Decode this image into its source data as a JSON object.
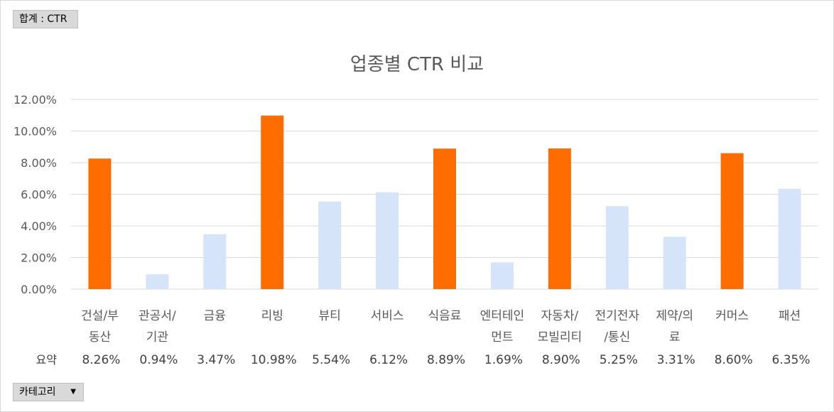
{
  "pivot": {
    "value_field_label": "합계 : CTR",
    "category_field_label": "카테고리",
    "category_dropdown_icon": "triangle-down-icon",
    "summary_row_label": "요약"
  },
  "colors": {
    "highlight": "#FF6D00",
    "normal": "#D6E4FA",
    "grid": "#D9D9D9"
  },
  "chart_data": {
    "type": "bar",
    "title": "업종별 CTR 비교",
    "xlabel": "",
    "ylabel": "",
    "ylim": [
      0,
      0.12
    ],
    "yticks": [
      "0.00%",
      "2.00%",
      "4.00%",
      "6.00%",
      "8.00%",
      "10.00%",
      "12.00%"
    ],
    "grid": true,
    "legend": "none",
    "categories": [
      [
        "건설/부",
        "동산"
      ],
      [
        "관공서/",
        "기관"
      ],
      [
        "금융"
      ],
      [
        "리빙"
      ],
      [
        "뷰티"
      ],
      [
        "서비스"
      ],
      [
        "식음료"
      ],
      [
        "엔터테인",
        "먼트"
      ],
      [
        "자동차/",
        "모빌리티"
      ],
      [
        "전기전자",
        "/통신"
      ],
      [
        "제약/의",
        "료"
      ],
      [
        "커머스"
      ],
      [
        "패션"
      ]
    ],
    "values": [
      0.0826,
      0.0094,
      0.0347,
      0.1098,
      0.0554,
      0.0612,
      0.0889,
      0.0169,
      0.089,
      0.0525,
      0.0331,
      0.086,
      0.0635
    ],
    "value_labels": [
      "8.26%",
      "0.94%",
      "3.47%",
      "10.98%",
      "5.54%",
      "6.12%",
      "8.89%",
      "1.69%",
      "8.90%",
      "5.25%",
      "3.31%",
      "8.60%",
      "6.35%"
    ],
    "highlighted": [
      true,
      false,
      false,
      true,
      false,
      false,
      true,
      false,
      true,
      false,
      false,
      true,
      false
    ]
  }
}
